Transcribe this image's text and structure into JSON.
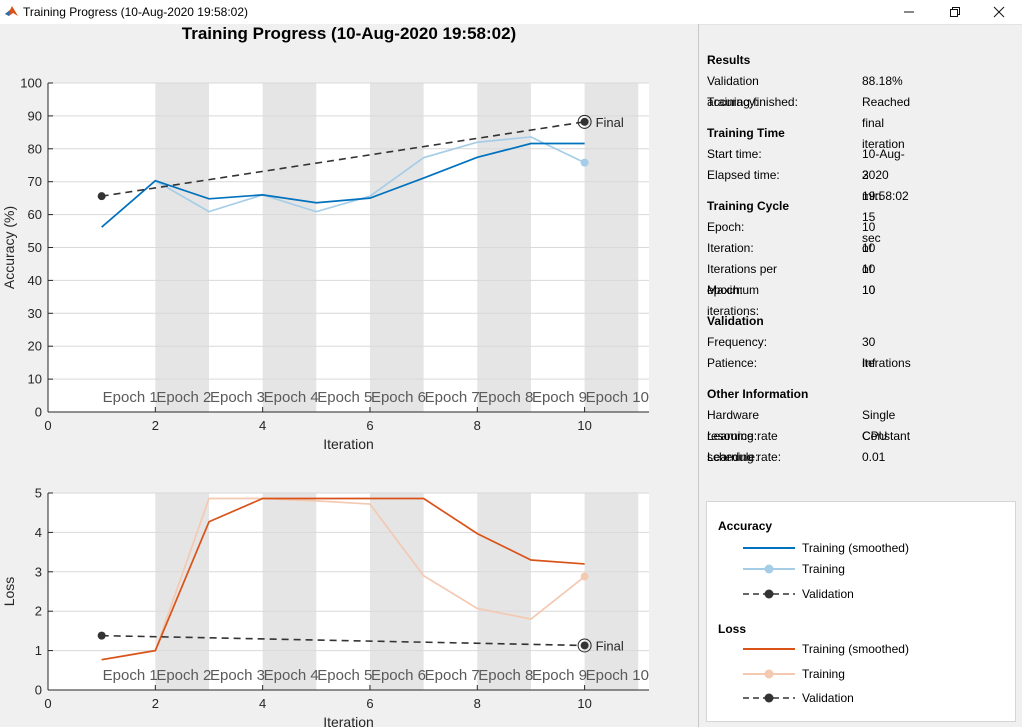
{
  "window": {
    "title": "Training Progress (10-Aug-2020 19:58:02)",
    "controls": {
      "minimize": "minimize",
      "maximize": "maximize",
      "close": "close"
    }
  },
  "main_title": "Training Progress (10-Aug-2020 19:58:02)",
  "epoch_labels": [
    "Epoch 1",
    "Epoch 2",
    "Epoch 3",
    "Epoch 4",
    "Epoch 5",
    "Epoch 6",
    "Epoch 7",
    "Epoch 8",
    "Epoch 9",
    "Epoch 10"
  ],
  "final_label": "Final",
  "chart_data": [
    {
      "type": "line",
      "xlabel": "Iteration",
      "ylabel": "Accuracy (%)",
      "xlim": [
        0,
        11.2
      ],
      "ylim": [
        0,
        100
      ],
      "xticks": [
        0,
        2,
        4,
        6,
        8,
        10
      ],
      "yticks": [
        0,
        10,
        20,
        30,
        40,
        50,
        60,
        70,
        80,
        90,
        100
      ],
      "epoch_bands_shaded": [
        [
          2,
          3
        ],
        [
          4,
          5
        ],
        [
          6,
          7
        ],
        [
          8,
          9
        ],
        [
          10,
          11
        ]
      ],
      "series": [
        {
          "name": "Training (smoothed)",
          "color": "#0072bd",
          "x": [
            1,
            2,
            3,
            4,
            5,
            6,
            7,
            8,
            9,
            10
          ],
          "y": [
            56.2,
            70.3,
            64.8,
            66.0,
            63.6,
            65.0,
            71.1,
            77.4,
            81.6,
            81.6
          ]
        },
        {
          "name": "Training",
          "color": "#a6cde8",
          "x": [
            1,
            2,
            3,
            4,
            5,
            6,
            7,
            8,
            9,
            10
          ],
          "y": [
            56.2,
            70.3,
            60.9,
            66.0,
            60.9,
            65.6,
            77.3,
            82.0,
            83.6,
            75.8
          ],
          "end_marker": true
        },
        {
          "name": "Validation",
          "color": "#333333",
          "dashed": true,
          "x": [
            1,
            10
          ],
          "y": [
            65.6,
            88.2
          ],
          "final_marker": true
        }
      ]
    },
    {
      "type": "line",
      "xlabel": "Iteration",
      "ylabel": "Loss",
      "xlim": [
        0,
        11.2
      ],
      "ylim": [
        0,
        5
      ],
      "xticks": [
        0,
        2,
        4,
        6,
        8,
        10
      ],
      "yticks": [
        0,
        1,
        2,
        3,
        4,
        5
      ],
      "epoch_bands_shaded": [
        [
          2,
          3
        ],
        [
          4,
          5
        ],
        [
          6,
          7
        ],
        [
          8,
          9
        ],
        [
          10,
          11
        ]
      ],
      "series": [
        {
          "name": "Training (smoothed)",
          "color": "#d95319",
          "x": [
            1,
            2,
            3,
            4,
            5,
            6,
            7,
            8,
            9,
            10
          ],
          "y": [
            0.77,
            1.0,
            4.27,
            4.86,
            4.86,
            4.86,
            4.86,
            3.97,
            3.3,
            3.2
          ]
        },
        {
          "name": "Training",
          "color": "#f4c9b2",
          "x": [
            1,
            2,
            3,
            4,
            5,
            6,
            7,
            8,
            9,
            10
          ],
          "y": [
            0.77,
            1.0,
            4.86,
            4.86,
            4.8,
            4.72,
            2.9,
            2.07,
            1.8,
            2.88
          ],
          "end_marker": true
        },
        {
          "name": "Validation",
          "color": "#333333",
          "dashed": true,
          "x": [
            1,
            10
          ],
          "y": [
            1.38,
            1.13
          ],
          "final_marker": true
        }
      ]
    }
  ],
  "info": {
    "results": {
      "heading": "Results",
      "validation_accuracy_label": "Validation accuracy:",
      "validation_accuracy": "88.18%",
      "training_finished_label": "Training finished:",
      "training_finished": "Reached final iteration"
    },
    "time": {
      "heading": "Training Time",
      "start_label": "Start time:",
      "start": "10-Aug-2020 19:58:02",
      "elapsed_label": "Elapsed time:",
      "elapsed": "3 min 15 sec"
    },
    "cycle": {
      "heading": "Training Cycle",
      "epoch_label": "Epoch:",
      "epoch": "10 of 10",
      "iteration_label": "Iteration:",
      "iteration": "10 of 10",
      "ipe_label": "Iterations per epoch:",
      "ipe": "1",
      "max_iter_label": "Maximum iterations:",
      "max_iter": "10"
    },
    "validation": {
      "heading": "Validation",
      "frequency_label": "Frequency:",
      "frequency": "30 iterations",
      "patience_label": "Patience:",
      "patience": "Inf"
    },
    "other": {
      "heading": "Other Information",
      "hardware_label": "Hardware resource:",
      "hardware": "Single CPU",
      "lr_schedule_label": "Learning rate schedule:",
      "lr_schedule": "Constant",
      "lr_label": "Learning rate:",
      "lr": "0.01"
    }
  },
  "legend": {
    "accuracy": {
      "heading": "Accuracy",
      "smoothed": "Training (smoothed)",
      "training": "Training",
      "validation": "Validation"
    },
    "loss": {
      "heading": "Loss",
      "smoothed": "Training (smoothed)",
      "training": "Training",
      "validation": "Validation"
    }
  }
}
